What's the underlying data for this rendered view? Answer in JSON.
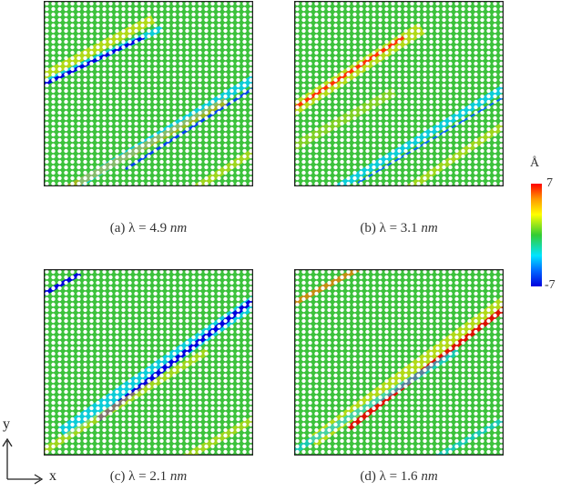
{
  "panels": [
    {
      "caption_prefix": "(a) λ = 4.9",
      "unit": "nm"
    },
    {
      "caption_prefix": "(b) λ = 3.1",
      "unit": "nm"
    },
    {
      "caption_prefix": "(c) λ = 2.1",
      "unit": "nm"
    },
    {
      "caption_prefix": "(d) λ = 1.6",
      "unit": "nm"
    }
  ],
  "colorbar": {
    "unit": "Å",
    "max": "7",
    "min": "-7",
    "colors": [
      "#ff0000",
      "#ffff00",
      "#33cc33",
      "#00e5ff",
      "#0000dd"
    ]
  },
  "axes": {
    "x": "x",
    "y": "y"
  }
}
